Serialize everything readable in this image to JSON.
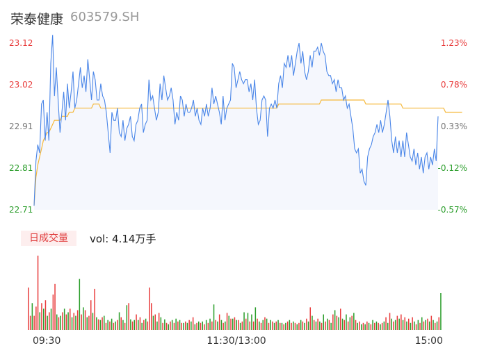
{
  "header": {
    "name": "荣泰健康",
    "code": "603579.SH"
  },
  "volume_panel": {
    "badge": "日成交量",
    "label": "vol: 4.14万手"
  },
  "colors": {
    "up": "#e83b3b",
    "down": "#2a9d2a",
    "neutral": "#777777",
    "price_line": "#4a86e8",
    "avg_line": "#f5b83a"
  },
  "chart_data": [
    {
      "type": "line",
      "title": "",
      "x_ticks": [
        "09:30",
        "11:30/13:00",
        "15:00"
      ],
      "y_ticks_left": [
        "23.12",
        "23.02",
        "22.91",
        "22.81",
        "22.71"
      ],
      "y_ticks_right": [
        "1.23%",
        "0.78%",
        "0.33%",
        "-0.12%",
        "-0.57%"
      ],
      "ylim": [
        22.71,
        23.12
      ],
      "prev_close": 22.84,
      "series": [
        {
          "role": "price",
          "values": [
            22.72,
            22.83,
            22.87,
            22.85,
            22.97,
            22.98,
            22.88,
            22.95,
            22.88,
            23.07,
            23.14,
            22.99,
            23.06,
            22.98,
            22.9,
            22.95,
            23.0,
            22.93,
            23.02,
            22.96,
            23.0,
            23.05,
            22.96,
            22.98,
            23.02,
            23.06,
            23.01,
            23.04,
            23.0,
            23.08,
            23.03,
            22.98,
            23.05,
            23.03,
            22.98,
            22.98,
            23.02,
            22.99,
            22.98,
            22.95,
            22.9,
            22.85,
            22.95,
            22.93,
            22.93,
            22.96,
            22.9,
            22.89,
            22.93,
            22.88,
            22.91,
            22.92,
            22.94,
            22.89,
            22.88,
            22.92,
            22.93,
            22.96,
            22.97,
            22.9,
            22.92,
            22.93,
            23.03,
            22.98,
            22.99,
            22.96,
            22.93,
            22.95,
            23.02,
            22.98,
            23.04,
            23.01,
            22.98,
            22.99,
            23.01,
            22.98,
            22.92,
            22.95,
            22.93,
            22.99,
            22.98,
            22.94,
            22.97,
            22.95,
            22.95,
            22.96,
            22.98,
            22.94,
            22.96,
            22.93,
            22.92,
            22.96,
            22.94,
            22.97,
            22.94,
            22.96,
            23.01,
            22.97,
            22.99,
            22.97,
            22.95,
            22.92,
            22.99,
            22.93,
            22.96,
            22.97,
            22.98,
            23.07,
            23.06,
            23.01,
            23.03,
            23.05,
            23.03,
            23.02,
            23.03,
            23.03,
            23.0,
            23.02,
            22.98,
            23.03,
            22.96,
            22.92,
            22.93,
            22.98,
            22.99,
            22.98,
            22.89,
            22.96,
            22.97,
            22.96,
            22.98,
            22.96,
            23.02,
            23.04,
            23.01,
            23.07,
            23.06,
            23.09,
            23.06,
            23.09,
            23.04,
            23.07,
            23.1,
            23.12,
            23.07,
            23.1,
            23.05,
            23.03,
            23.05,
            23.09,
            23.06,
            23.1,
            23.1,
            23.11,
            23.09,
            23.12,
            23.1,
            23.09,
            23.05,
            23.04,
            23.04,
            23.02,
            23.03,
            23.0,
            23.03,
            23.01,
            23.01,
            22.98,
            22.99,
            22.96,
            22.97,
            22.94,
            22.91,
            22.86,
            22.85,
            22.86,
            22.8,
            22.81,
            22.78,
            22.77,
            22.84,
            22.86,
            22.87,
            22.89,
            22.9,
            22.92,
            22.9,
            22.93,
            22.9,
            22.92,
            22.95,
            22.98,
            22.94,
            22.88,
            22.85,
            22.89,
            22.85,
            22.88,
            22.84,
            22.88,
            22.84,
            22.9,
            22.87,
            22.84,
            22.83,
            22.86,
            22.82,
            22.85,
            22.81,
            22.84,
            22.8,
            22.84,
            22.85,
            22.81,
            22.84,
            22.82,
            22.86,
            22.83,
            22.94
          ]
        },
        {
          "role": "average",
          "values": [
            22.72,
            22.79,
            22.82,
            22.84,
            22.86,
            22.88,
            22.89,
            22.9,
            22.9,
            22.91,
            22.92,
            22.93,
            22.93,
            22.93,
            22.93,
            22.94,
            22.94,
            22.94,
            22.94,
            22.95,
            22.95,
            22.95,
            22.96,
            22.96,
            22.96,
            22.96,
            22.96,
            22.96,
            22.96,
            22.96,
            22.96,
            22.96,
            22.97,
            22.97,
            22.97,
            22.97,
            22.96,
            22.96,
            22.96,
            22.96,
            22.96,
            22.96,
            22.96,
            22.96,
            22.96,
            22.96,
            22.96,
            22.96,
            22.96,
            22.96,
            22.96,
            22.96,
            22.96,
            22.96,
            22.96,
            22.96,
            22.96,
            22.96,
            22.96,
            22.96,
            22.96,
            22.96,
            22.96,
            22.96,
            22.96,
            22.96,
            22.96,
            22.96,
            22.96,
            22.96,
            22.96,
            22.96,
            22.96,
            22.96,
            22.96,
            22.96,
            22.96,
            22.96,
            22.96,
            22.96,
            22.96,
            22.96,
            22.96,
            22.96,
            22.96,
            22.96,
            22.96,
            22.96,
            22.96,
            22.96,
            22.96,
            22.96,
            22.96,
            22.96,
            22.96,
            22.96,
            22.96,
            22.96,
            22.96,
            22.96,
            22.96,
            22.96,
            22.96,
            22.96,
            22.96,
            22.96,
            22.96,
            22.96,
            22.96,
            22.96,
            22.96,
            22.96,
            22.96,
            22.96,
            22.96,
            22.96,
            22.96,
            22.96,
            22.96,
            22.96,
            22.96,
            22.96,
            22.96,
            22.96,
            22.96,
            22.96,
            22.96,
            22.96,
            22.96,
            22.96,
            22.96,
            22.96,
            22.97,
            22.97,
            22.97,
            22.97,
            22.97,
            22.97,
            22.97,
            22.97,
            22.97,
            22.97,
            22.97,
            22.97,
            22.97,
            22.97,
            22.97,
            22.97,
            22.97,
            22.97,
            22.97,
            22.97,
            22.97,
            22.97,
            22.97,
            22.98,
            22.98,
            22.98,
            22.98,
            22.98,
            22.98,
            22.98,
            22.98,
            22.98,
            22.98,
            22.98,
            22.98,
            22.98,
            22.98,
            22.98,
            22.98,
            22.98,
            22.98,
            22.98,
            22.98,
            22.98,
            22.98,
            22.98,
            22.98,
            22.97,
            22.97,
            22.97,
            22.97,
            22.97,
            22.97,
            22.97,
            22.97,
            22.97,
            22.97,
            22.97,
            22.97,
            22.97,
            22.97,
            22.97,
            22.97,
            22.97,
            22.97,
            22.97,
            22.97,
            22.96,
            22.96,
            22.96,
            22.96,
            22.96,
            22.96,
            22.96,
            22.96,
            22.96,
            22.96,
            22.96,
            22.96,
            22.96,
            22.96,
            22.96,
            22.96,
            22.96,
            22.96,
            22.96,
            22.96,
            22.96,
            22.96,
            22.96,
            22.95,
            22.95,
            22.95,
            22.95,
            22.95,
            22.95,
            22.95,
            22.95,
            22.95,
            22.95
          ]
        }
      ]
    },
    {
      "type": "bar",
      "title": "",
      "ylim": [
        0,
        105
      ],
      "values": [
        60,
        20,
        38,
        20,
        33,
        105,
        25,
        38,
        30,
        42,
        20,
        25,
        30,
        50,
        65,
        22,
        18,
        20,
        25,
        30,
        22,
        25,
        30,
        18,
        24,
        20,
        28,
        72,
        22,
        32,
        28,
        18,
        20,
        42,
        24,
        58,
        18,
        15,
        14,
        18,
        20,
        10,
        14,
        12,
        16,
        10,
        12,
        14,
        25,
        18,
        14,
        10,
        35,
        38,
        15,
        12,
        14,
        22,
        14,
        18,
        10,
        14,
        16,
        12,
        60,
        38,
        20,
        22,
        12,
        24,
        18,
        10,
        15,
        10,
        8,
        12,
        14,
        10,
        16,
        12,
        14,
        10,
        10,
        12,
        10,
        14,
        12,
        18,
        8,
        10,
        12,
        10,
        12,
        8,
        14,
        10,
        16,
        12,
        36,
        14,
        12,
        22,
        14,
        10,
        12,
        24,
        20,
        16,
        16,
        18,
        14,
        14,
        10,
        12,
        25,
        16,
        24,
        12,
        22,
        12,
        32,
        16,
        12,
        10,
        14,
        18,
        16,
        10,
        14,
        12,
        10,
        12,
        14,
        10,
        10,
        8,
        10,
        12,
        14,
        10,
        12,
        10,
        8,
        10,
        14,
        12,
        10,
        16,
        12,
        32,
        20,
        14,
        12,
        16,
        12,
        10,
        22,
        12,
        16,
        14,
        10,
        22,
        28,
        20,
        18,
        30,
        16,
        14,
        22,
        12,
        18,
        20,
        24,
        14,
        10,
        12,
        8,
        10,
        8,
        12,
        10,
        8,
        14,
        10,
        12,
        10,
        8,
        10,
        12,
        18,
        10,
        24,
        16,
        12,
        14,
        20,
        16,
        22,
        14,
        18,
        12,
        16,
        10,
        18,
        12,
        8,
        14,
        10,
        18,
        12,
        14,
        16,
        12,
        20,
        14,
        10,
        12,
        18,
        52
      ],
      "colors": [
        "up",
        "up",
        "down",
        "up",
        "up",
        "up",
        "down",
        "up",
        "down",
        "up",
        "down",
        "up",
        "down",
        "up",
        "up",
        "down",
        "up",
        "down",
        "up",
        "down",
        "up",
        "down",
        "up",
        "down",
        "up",
        "down",
        "up",
        "down",
        "up",
        "down",
        "up",
        "down",
        "up",
        "up",
        "down",
        "up",
        "down",
        "up",
        "down",
        "up",
        "down",
        "up",
        "down",
        "up",
        "down",
        "up",
        "down",
        "up",
        "down",
        "up",
        "down",
        "up",
        "down",
        "up",
        "down",
        "up",
        "down",
        "up",
        "down",
        "up",
        "down",
        "up",
        "down",
        "up",
        "up",
        "up",
        "down",
        "up",
        "down",
        "up",
        "down",
        "up",
        "down",
        "up",
        "down",
        "up",
        "down",
        "up",
        "down",
        "up",
        "down",
        "up",
        "down",
        "up",
        "down",
        "up",
        "down",
        "up",
        "down",
        "up",
        "down",
        "up",
        "down",
        "up",
        "down",
        "up",
        "down",
        "up",
        "down",
        "up",
        "down",
        "up",
        "down",
        "up",
        "down",
        "up",
        "down",
        "up",
        "down",
        "up",
        "down",
        "up",
        "down",
        "up",
        "down",
        "up",
        "down",
        "up",
        "down",
        "up",
        "down",
        "up",
        "down",
        "up",
        "down",
        "up",
        "down",
        "up",
        "down",
        "up",
        "down",
        "up",
        "down",
        "up",
        "down",
        "up",
        "down",
        "up",
        "down",
        "up",
        "down",
        "up",
        "down",
        "up",
        "down",
        "up",
        "down",
        "up",
        "down",
        "up",
        "down",
        "up",
        "down",
        "up",
        "down",
        "up",
        "down",
        "up",
        "down",
        "up",
        "down",
        "up",
        "down",
        "up",
        "down",
        "up",
        "down",
        "up",
        "down",
        "up",
        "down",
        "up",
        "down",
        "up",
        "down",
        "up",
        "down",
        "up",
        "down",
        "up",
        "down",
        "up",
        "down",
        "up",
        "down",
        "up",
        "down",
        "up",
        "down",
        "up",
        "down",
        "up",
        "down",
        "up",
        "down",
        "up",
        "down",
        "up",
        "down",
        "up",
        "down",
        "up",
        "down",
        "up",
        "down",
        "up",
        "down",
        "up",
        "down",
        "up",
        "down",
        "up",
        "down",
        "up",
        "down",
        "up",
        "down",
        "up",
        "down",
        "up",
        "down",
        "neutral"
      ]
    }
  ]
}
